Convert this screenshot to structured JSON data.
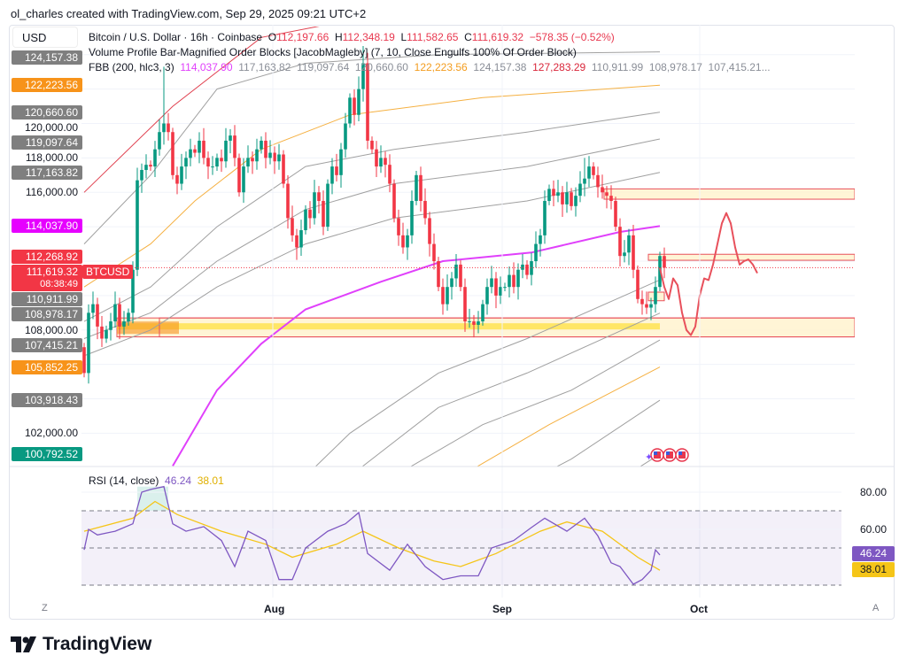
{
  "credit": "ol_charles created with TradingView.com, Sep 29, 2025 09:21 UTC+2",
  "currency_button": "USD",
  "symbol_legend": {
    "title": "Bitcoin / U.S. Dollar · 16h · Coinbase",
    "o_label": "O",
    "o": "112,197.66",
    "h_label": "H",
    "h": "112,348.19",
    "l_label": "L",
    "l": "111,582.65",
    "c_label": "C",
    "c": "111,619.32",
    "change": "−578.35 (−0.52%)"
  },
  "indicators": [
    {
      "text": "Volume Profile Bar-Magnified Order Blocks [JacobMagleby] (7, 10, Close Engulfs 100% Of Order Block)"
    },
    {
      "text": "FBB (200, hlc3, 3)",
      "values": [
        "114,037.90",
        "117,163.82",
        "119,097.64",
        "120,660.60",
        "122,223.56",
        "124,157.38",
        "127,283.29",
        "110,911.99",
        "108,978.17",
        "107,415.21..."
      ]
    }
  ],
  "price_axis": {
    "ticks": [
      "120,000.00",
      "118,000.00",
      "116,000.00",
      "108,000.00",
      "102,000.00"
    ],
    "tick_values": [
      120000,
      118000,
      116000,
      108000,
      102000
    ],
    "labels": [
      {
        "text": "124,157.38",
        "value": 124157.38,
        "color": "#7f7f7f"
      },
      {
        "text": "122,223.56",
        "value": 122223.56,
        "color": "#f7931a"
      },
      {
        "text": "120,660.60",
        "value": 120660.6,
        "color": "#7f7f7f"
      },
      {
        "text": "119,097.64",
        "value": 119097.64,
        "color": "#7f7f7f"
      },
      {
        "text": "117,163.82",
        "value": 117163.82,
        "color": "#7f7f7f"
      },
      {
        "text": "114,037.90",
        "value": 114037.9,
        "color": "#e600ff"
      },
      {
        "text": "112,268.92",
        "value": 112268.92,
        "color": "#f23645"
      },
      {
        "text": "110,911.99",
        "value": 110911.99,
        "color": "#7f7f7f"
      },
      {
        "text": "108,978.17",
        "value": 108978.17,
        "color": "#7f7f7f"
      },
      {
        "text": "107,415.21",
        "value": 107415.21,
        "color": "#7f7f7f"
      },
      {
        "text": "105,852.25",
        "value": 105852.25,
        "color": "#f7931a"
      },
      {
        "text": "103,918.43",
        "value": 103918.43,
        "color": "#7f7f7f"
      },
      {
        "text": "100,792.52",
        "value": 100792.52,
        "color": "#089981"
      }
    ],
    "last_price": {
      "text": "111,619.32",
      "value": 111619.32,
      "countdown": "08:38:49",
      "symbol_tag": "BTCUSD",
      "color": "#f23645"
    }
  },
  "time_axis": {
    "labels": [
      "Aug",
      "Sep",
      "Oct"
    ],
    "left_button": "Z",
    "right_button": "A"
  },
  "chart_data": [
    {
      "type": "candlestick",
      "interval": "16h",
      "ylim": [
        100000,
        126000
      ],
      "colors": {
        "up": "#089981",
        "down": "#f23645"
      },
      "opening_price": 107000,
      "closes": [
        105500,
        109000,
        109500,
        108200,
        107500,
        108000,
        108500,
        109500,
        108200,
        108500,
        109000,
        111500,
        116700,
        117300,
        117600,
        117500,
        118500,
        119500,
        120000,
        119500,
        117000,
        116500,
        117500,
        118000,
        118500,
        118300,
        119000,
        118000,
        117500,
        117500,
        118000,
        117800,
        119000,
        119300,
        118000,
        116000,
        117500,
        118000,
        117800,
        118500,
        119000,
        118000,
        118300,
        117800,
        118200,
        116500,
        114500,
        113500,
        112800,
        113800,
        115000,
        114500,
        116000,
        115500,
        114000,
        116500,
        117500,
        117000,
        118500,
        120000,
        121500,
        120500,
        122000,
        123500,
        119000,
        118500,
        117500,
        118000,
        117600,
        116500,
        114500,
        113500,
        112800,
        113500,
        115500,
        117000,
        115500,
        114500,
        113000,
        112000,
        110500,
        109500,
        110500,
        111000,
        111800,
        110500,
        108500,
        108500,
        108300,
        108500,
        109500,
        110500,
        111000,
        110000,
        110500,
        110500,
        111200,
        110500,
        111500,
        111800,
        111200,
        112000,
        113000,
        113500,
        115500,
        116200,
        115800,
        116000,
        115300,
        116000,
        115200,
        115800,
        116500,
        116800,
        117500,
        117000,
        116300,
        116000,
        115800,
        115500,
        114000,
        112300,
        112500,
        113500,
        111500,
        109800,
        109500,
        109300,
        109500,
        110500,
        112300,
        111619.32
      ],
      "wick_highs": [
        {
          "index": 18,
          "high": 123300
        },
        {
          "index": 63,
          "high": 124500
        },
        {
          "index": 113,
          "high": 118000
        }
      ],
      "fbb_bands": [
        {
          "value": "127,283.29",
          "color": "#e0404f",
          "points": [
            [
              0,
              116
            ],
            [
              20,
              121
            ],
            [
              40,
              125
            ],
            [
              70,
              126.5
            ],
            [
              130,
              127.28
            ]
          ]
        },
        {
          "value": "124,157.38",
          "color": "#a0a0a0",
          "points": [
            [
              0,
              113
            ],
            [
              15,
              117
            ],
            [
              30,
              122
            ],
            [
              50,
              123.5
            ],
            [
              80,
              124
            ],
            [
              130,
              124.16
            ]
          ]
        },
        {
          "value": "122,223.56",
          "color": "#f5b041",
          "points": [
            [
              0,
              110.5
            ],
            [
              15,
              113
            ],
            [
              25,
              115.5
            ],
            [
              40,
              118.5
            ],
            [
              60,
              120.5
            ],
            [
              90,
              121.5
            ],
            [
              130,
              122.22
            ]
          ]
        },
        {
          "value": "120,660.60",
          "color": "#a0a0a0",
          "points": [
            [
              0,
              108.5
            ],
            [
              15,
              110.5
            ],
            [
              30,
              114
            ],
            [
              50,
              117.5
            ],
            [
              70,
              118.5
            ],
            [
              100,
              119.5
            ],
            [
              130,
              120.66
            ]
          ]
        },
        {
          "value": "119,097.64",
          "color": "#a0a0a0",
          "points": [
            [
              0,
              107.5
            ],
            [
              15,
              109
            ],
            [
              30,
              112
            ],
            [
              50,
              115
            ],
            [
              70,
              116.5
            ],
            [
              100,
              117.5
            ],
            [
              130,
              119.1
            ]
          ]
        },
        {
          "value": "117,163.82",
          "color": "#a0a0a0",
          "points": [
            [
              0,
              106.5
            ],
            [
              15,
              108
            ],
            [
              30,
              110.5
            ],
            [
              50,
              113
            ],
            [
              70,
              114.5
            ],
            [
              100,
              115.5
            ],
            [
              130,
              117.16
            ]
          ]
        },
        {
          "value": "114,037.90",
          "color": "#e040fb",
          "width": 2,
          "points": [
            [
              20,
              100.1
            ],
            [
              30,
              104.5
            ],
            [
              40,
              107.2
            ],
            [
              50,
              109.2
            ],
            [
              67,
              110.8
            ],
            [
              81,
              112
            ],
            [
              101,
              112.5
            ],
            [
              121,
              113.7
            ],
            [
              130,
              114.04
            ]
          ]
        },
        {
          "value": "110,911.99",
          "color": "#a0a0a0",
          "points": [
            [
              40,
              97
            ],
            [
              60,
              102
            ],
            [
              80,
              105.5
            ],
            [
              100,
              107.5
            ],
            [
              130,
              110.91
            ]
          ]
        },
        {
          "value": "108,978.17",
          "color": "#a0a0a0",
          "points": [
            [
              45,
              95
            ],
            [
              60,
              99.5
            ],
            [
              80,
              103.5
            ],
            [
              100,
              105.5
            ],
            [
              130,
              108.98
            ]
          ]
        },
        {
          "value": "107,415.21",
          "color": "#a0a0a0",
          "points": [
            [
              50,
              95
            ],
            [
              70,
              99.5
            ],
            [
              90,
              102.5
            ],
            [
              110,
              104.5
            ],
            [
              130,
              107.42
            ]
          ]
        },
        {
          "value": "105,852.25",
          "color": "#f5b041",
          "points": [
            [
              65,
              95
            ],
            [
              85,
              99.5
            ],
            [
              105,
              102.5
            ],
            [
              130,
              105.85
            ]
          ]
        },
        {
          "value": "103,918.43",
          "color": "#a0a0a0",
          "points": [
            [
              75,
              95
            ],
            [
              95,
              98.5
            ],
            [
              110,
              100.5
            ],
            [
              130,
              103.92
            ]
          ]
        },
        {
          "value": "100,792.52",
          "color": "#a0a0a0",
          "points": [
            [
              95,
              95
            ],
            [
              110,
              97.5
            ],
            [
              130,
              100.79
            ]
          ]
        }
      ],
      "order_blocks": [
        {
          "from_index": 8,
          "top": 108700,
          "bottom": 107600
        },
        {
          "from_index": 118,
          "top": 116200,
          "bottom": 115600
        },
        {
          "from_index": 128,
          "top": 112400,
          "bottom": 112050
        },
        {
          "from_index": 128,
          "to_index": 131,
          "top": 110200,
          "bottom": 109700
        }
      ],
      "projection": [
        [
          130,
          111.6
        ],
        [
          131,
          110.5
        ],
        [
          132,
          109.8
        ],
        [
          133,
          111
        ],
        [
          134,
          110.6
        ],
        [
          135,
          109
        ],
        [
          136,
          108
        ],
        [
          137,
          107.7
        ],
        [
          138,
          108.2
        ],
        [
          139,
          110
        ],
        [
          140,
          111
        ],
        [
          141,
          110.9
        ],
        [
          142,
          111.8
        ],
        [
          143,
          113
        ],
        [
          144,
          114.2
        ],
        [
          145,
          114.8
        ],
        [
          146,
          114.2
        ],
        [
          147,
          112.8
        ],
        [
          148,
          111.8
        ],
        [
          149,
          112
        ],
        [
          150,
          112.1
        ],
        [
          151,
          111.8
        ],
        [
          152,
          111.3
        ]
      ],
      "projection_color": "#e8505b"
    },
    {
      "type": "line",
      "title": "RSI (14, close)",
      "rsi_value": "46.24",
      "ma_value": "38.01",
      "ylim": [
        20,
        90
      ],
      "ticks": [
        "80.00",
        "60.00"
      ],
      "tick_values": [
        80,
        60
      ],
      "bands": [
        70,
        50,
        30
      ],
      "colors": {
        "rsi": "#7e57c2",
        "ma": "#f5c518"
      },
      "rsi": [
        [
          0,
          49
        ],
        [
          1,
          60
        ],
        [
          3,
          57
        ],
        [
          7,
          59
        ],
        [
          11,
          63
        ],
        [
          13,
          80
        ],
        [
          15,
          81.5
        ],
        [
          18,
          83
        ],
        [
          20,
          63
        ],
        [
          23,
          59
        ],
        [
          27,
          61.5
        ],
        [
          31,
          54
        ],
        [
          34,
          40
        ],
        [
          37,
          59
        ],
        [
          41,
          54
        ],
        [
          44,
          33
        ],
        [
          47,
          33
        ],
        [
          50,
          50
        ],
        [
          55,
          59
        ],
        [
          59,
          63
        ],
        [
          62,
          69
        ],
        [
          64,
          47
        ],
        [
          69,
          38
        ],
        [
          73,
          52
        ],
        [
          77,
          40
        ],
        [
          81,
          33
        ],
        [
          85,
          35
        ],
        [
          89,
          35
        ],
        [
          92,
          50
        ],
        [
          97,
          54
        ],
        [
          101,
          61
        ],
        [
          104,
          66
        ],
        [
          109,
          59
        ],
        [
          113,
          66
        ],
        [
          116,
          56.5
        ],
        [
          119,
          42
        ],
        [
          121,
          40
        ],
        [
          124,
          30.5
        ],
        [
          126,
          33
        ],
        [
          128,
          38
        ],
        [
          129,
          49
        ],
        [
          130,
          46.24
        ]
      ],
      "ma": [
        [
          0,
          59
        ],
        [
          11,
          66
        ],
        [
          16,
          75
        ],
        [
          21,
          68
        ],
        [
          31,
          59
        ],
        [
          41,
          52
        ],
        [
          47,
          45
        ],
        [
          57,
          52
        ],
        [
          63,
          59
        ],
        [
          71,
          50
        ],
        [
          79,
          43
        ],
        [
          85,
          40
        ],
        [
          93,
          47
        ],
        [
          103,
          59
        ],
        [
          109,
          64
        ],
        [
          117,
          59
        ],
        [
          125,
          45
        ],
        [
          130,
          38.01
        ]
      ]
    }
  ],
  "branding": {
    "logo_text": "TradingView"
  }
}
